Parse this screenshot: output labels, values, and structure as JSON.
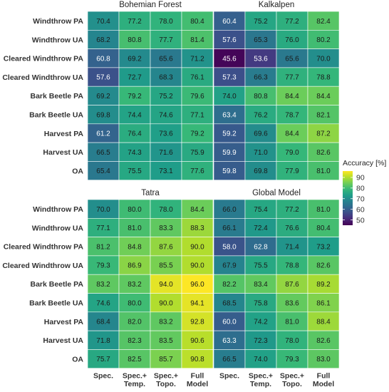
{
  "chart_data": {
    "type": "heatmap",
    "rows": [
      "Windthrow PA",
      "Windthrow UA",
      "Cleared Windthrow PA",
      "Cleared Windthrow UA",
      "Bark Beetle PA",
      "Bark Beetle UA",
      "Harvest PA",
      "Harvest UA",
      "OA"
    ],
    "columns": [
      "Spec.",
      "Spec.+ Temp.",
      "Spec.+ Topo.",
      "Full Model"
    ],
    "column_lines": [
      [
        "Spec."
      ],
      [
        "Spec.+",
        "Temp."
      ],
      [
        "Spec.+",
        "Topo."
      ],
      [
        "Full",
        "Model"
      ]
    ],
    "panels": [
      {
        "title": "Bohemian Forest",
        "values": [
          [
            70.4,
            77.2,
            78.0,
            80.4
          ],
          [
            68.2,
            80.8,
            77.7,
            81.4
          ],
          [
            60.8,
            69.2,
            65.6,
            71.2
          ],
          [
            57.6,
            72.7,
            68.3,
            76.1
          ],
          [
            69.2,
            79.2,
            75.2,
            79.6
          ],
          [
            69.8,
            74.4,
            74.6,
            77.1
          ],
          [
            61.2,
            76.4,
            73.6,
            79.2
          ],
          [
            66.5,
            74.3,
            71.6,
            75.9
          ],
          [
            65.4,
            75.5,
            73.1,
            77.6
          ]
        ]
      },
      {
        "title": "Kalkalpen",
        "values": [
          [
            60.4,
            75.2,
            77.2,
            82.4
          ],
          [
            57.6,
            65.3,
            76.0,
            80.2
          ],
          [
            45.6,
            53.6,
            65.6,
            70.0
          ],
          [
            57.3,
            66.3,
            77.7,
            78.8
          ],
          [
            74.0,
            80.8,
            84.4,
            84.4
          ],
          [
            63.4,
            76.2,
            78.7,
            82.1
          ],
          [
            59.2,
            69.6,
            84.4,
            87.2
          ],
          [
            59.9,
            71.0,
            79.0,
            82.6
          ],
          [
            59.8,
            69.8,
            77.9,
            81.0
          ]
        ]
      },
      {
        "title": "Tatra",
        "values": [
          [
            70.0,
            80.0,
            78.0,
            84.4
          ],
          [
            77.1,
            81.0,
            83.3,
            88.3
          ],
          [
            81.2,
            84.8,
            87.6,
            90.0
          ],
          [
            79.3,
            86.9,
            85.5,
            90.0
          ],
          [
            83.2,
            83.2,
            94.0,
            96.0
          ],
          [
            74.6,
            80.0,
            90.0,
            94.1
          ],
          [
            68.4,
            82.0,
            83.2,
            92.8
          ],
          [
            71.8,
            82.3,
            83.5,
            90.6
          ],
          [
            75.7,
            82.5,
            85.7,
            90.8
          ]
        ]
      },
      {
        "title": "Global Model",
        "values": [
          [
            66.0,
            75.4,
            77.2,
            81.0
          ],
          [
            66.1,
            72.4,
            76.6,
            80.4
          ],
          [
            58.0,
            62.8,
            71.4,
            73.2
          ],
          [
            67.9,
            75.5,
            78.8,
            82.6
          ],
          [
            82.2,
            83.4,
            87.6,
            89.2
          ],
          [
            68.5,
            75.8,
            83.6,
            86.1
          ],
          [
            60.0,
            74.2,
            81.0,
            88.4
          ],
          [
            63.3,
            72.3,
            78.0,
            82.6
          ],
          [
            66.5,
            74.0,
            79.3,
            83.0
          ]
        ]
      }
    ],
    "legend": {
      "title": "Accuracy [%]",
      "ticks": [
        50,
        60,
        70,
        80,
        90
      ],
      "range": [
        45,
        96
      ],
      "position": "right"
    },
    "colormap": "viridis"
  }
}
